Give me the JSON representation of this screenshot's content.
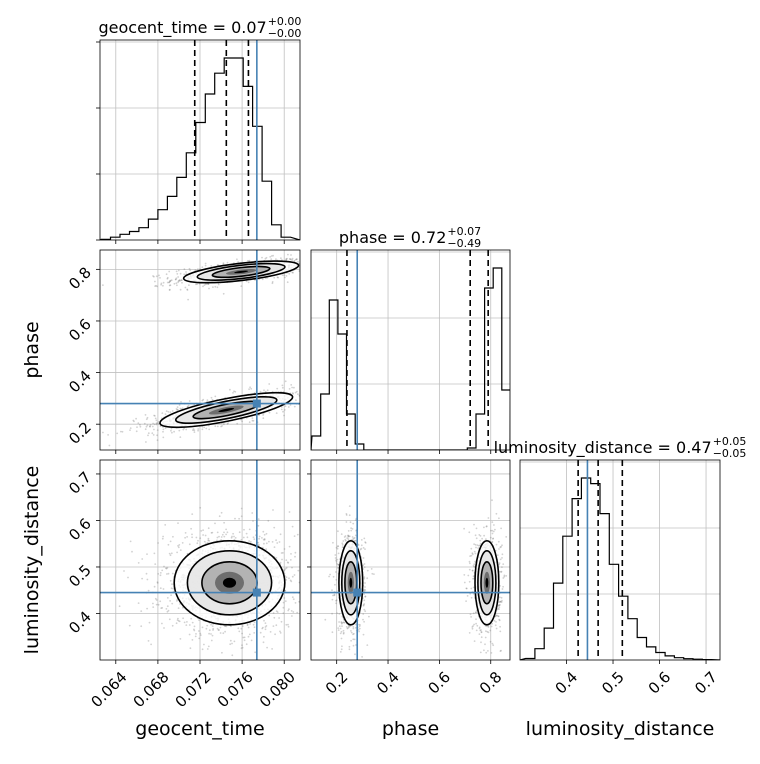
{
  "chart_data": {
    "type": "corner",
    "parameters": [
      "geocent_time",
      "phase",
      "luminosity_distance"
    ],
    "truth": {
      "geocent_time": 0.0774,
      "phase": 0.28,
      "luminosity_distance": 0.445
    },
    "colors": {
      "truth": "#4682b4",
      "hist": "#000000",
      "grid": "#c0c0c0",
      "quantile": "#000000",
      "points": "#7f7f7f"
    },
    "grid": true,
    "titles": [
      {
        "param": "geocent_time",
        "text": "geocent_time = 0.07",
        "sup": "+0.00",
        "sub": "−0.00"
      },
      {
        "param": "phase",
        "text": "phase = 0.72",
        "sup": "+0.07",
        "sub": "−0.49"
      },
      {
        "param": "luminosity_distance",
        "text": "luminosity_distance = 0.47",
        "sup": "+0.05",
        "sub": "−0.05"
      }
    ],
    "axes": {
      "geocent_time": {
        "label": "geocent_time",
        "range": [
          0.0625,
          0.0815
        ],
        "ticks": [
          0.064,
          0.068,
          0.072,
          0.076,
          0.08
        ],
        "ticklabels": [
          "0.064",
          "0.068",
          "0.072",
          "0.076",
          "0.080"
        ]
      },
      "phase": {
        "label": "phase",
        "range": [
          0.1,
          0.875
        ],
        "ticks": [
          0.2,
          0.4,
          0.6,
          0.8
        ],
        "ticklabels": [
          "0.2",
          "0.4",
          "0.6",
          "0.8"
        ]
      },
      "luminosity_distance": {
        "label": "luminosity_distance",
        "range": [
          0.3,
          0.73
        ],
        "ticks": [
          0.4,
          0.5,
          0.6,
          0.7
        ],
        "ticklabels": [
          "0.4",
          "0.5",
          "0.6",
          "0.7"
        ]
      }
    },
    "histograms": [
      {
        "param": "geocent_time",
        "quantiles": [
          0.0715,
          0.0745,
          0.0766
        ],
        "bins_lo": 0.0626,
        "bin_width": 0.0009,
        "counts": [
          0.3,
          1.5,
          3,
          4.5,
          6.5,
          11,
          16,
          23,
          33,
          46,
          62,
          77,
          88,
          96,
          96,
          81,
          60,
          31,
          8,
          1.5
        ]
      },
      {
        "param": "phase",
        "quantiles": [
          0.24,
          0.72,
          0.79
        ],
        "bins_lo": 0.104,
        "bin_width": 0.0336,
        "counts": [
          7,
          28,
          75,
          58,
          18,
          3,
          0,
          0,
          0,
          0,
          0,
          0,
          0,
          0,
          0,
          0,
          0,
          0,
          1,
          18,
          81,
          91,
          30
        ]
      },
      {
        "param": "luminosity_distance",
        "quantiles": [
          0.425,
          0.468,
          0.52
        ],
        "bins_lo": 0.312,
        "bin_width": 0.02,
        "counts": [
          0.8,
          6,
          17,
          41,
          66,
          86,
          97,
          94,
          78,
          51,
          34,
          22,
          12,
          7,
          4,
          2.2,
          1.2,
          0.7,
          0.4,
          0.2
        ]
      }
    ],
    "clusters": [
      {
        "x": "geocent_time",
        "y": "phase",
        "center": [
          0.0759,
          0.79
        ],
        "sd": [
          0.0026,
          0.02
        ],
        "rho": 0.6,
        "n": 900
      },
      {
        "x": "geocent_time",
        "y": "phase",
        "center": [
          0.0745,
          0.255
        ],
        "sd": [
          0.003,
          0.032
        ],
        "rho": 0.75,
        "n": 900
      },
      {
        "x": "geocent_time",
        "y": "luminosity_distance",
        "center": [
          0.0748,
          0.466
        ],
        "sd": [
          0.0025,
          0.043
        ],
        "rho": 0,
        "n": 1700
      },
      {
        "x": "phase",
        "y": "luminosity_distance",
        "center": [
          0.255,
          0.466
        ],
        "sd": [
          0.022,
          0.043
        ],
        "rho": 0,
        "n": 850
      },
      {
        "x": "phase",
        "y": "luminosity_distance",
        "center": [
          0.785,
          0.466
        ],
        "sd": [
          0.022,
          0.043
        ],
        "rho": 0,
        "n": 850
      }
    ]
  }
}
